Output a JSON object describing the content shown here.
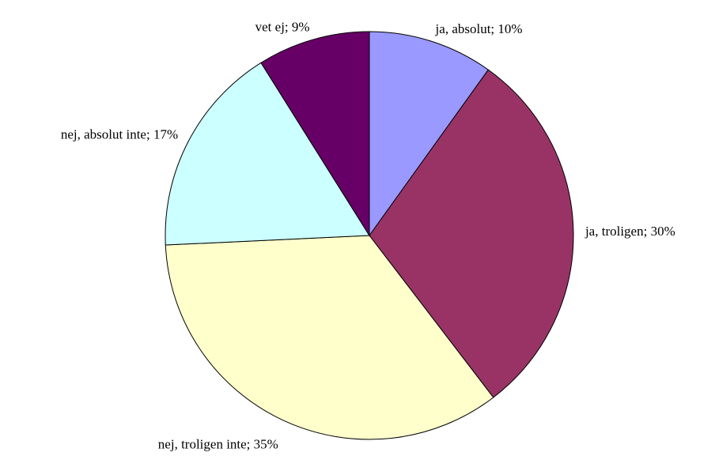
{
  "chart_data": {
    "type": "pie",
    "categories": [
      "ja, absolut;",
      "ja, troligen;",
      "nej, troligen inte;",
      "nej, absolut inte;",
      "vet ej;"
    ],
    "values": [
      10,
      30,
      35,
      17,
      9
    ],
    "value_labels": [
      "10%",
      "30%",
      "35%",
      "17%",
      "9%"
    ],
    "colors": [
      "#9999ff",
      "#993366",
      "#ffffcc",
      "#ccffff",
      "#660066"
    ]
  }
}
